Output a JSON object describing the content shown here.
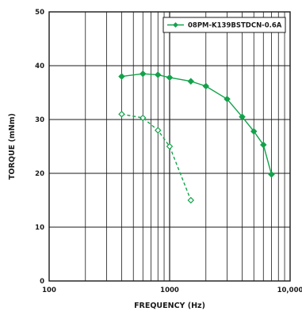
{
  "chart_data": {
    "type": "line",
    "xlabel": "FREQUENCY (Hz)",
    "ylabel": "TORQUE (mNm)",
    "x_scale": "log",
    "xlim": [
      100,
      10000
    ],
    "ylim": [
      0,
      50
    ],
    "x_tick_labels": [
      "100",
      "1000",
      "10,000"
    ],
    "y_ticks": [
      0,
      10,
      20,
      30,
      40,
      50
    ],
    "y_tick_labels": [
      "0",
      "10",
      "20",
      "30",
      "40",
      "50"
    ],
    "grid": true,
    "legend_position": "top-right",
    "series": [
      {
        "name": "08PM-K139BSTDCN-0.6A",
        "color": "#13a24b",
        "marker": "diamond",
        "marker_fill": "filled",
        "line_style": "solid",
        "x": [
          400,
          600,
          800,
          1000,
          1500,
          2000,
          3000,
          4000,
          5000,
          6000,
          7000
        ],
        "y": [
          38.0,
          38.5,
          38.3,
          37.8,
          37.1,
          36.2,
          33.8,
          30.5,
          27.8,
          25.3,
          19.8
        ]
      },
      {
        "name": "",
        "color": "#13a24b",
        "marker": "diamond",
        "marker_fill": "open",
        "line_style": "dashed",
        "x": [
          400,
          600,
          800,
          1000,
          1500
        ],
        "y": [
          31.0,
          30.3,
          28.0,
          25.0,
          15.0
        ]
      }
    ]
  }
}
